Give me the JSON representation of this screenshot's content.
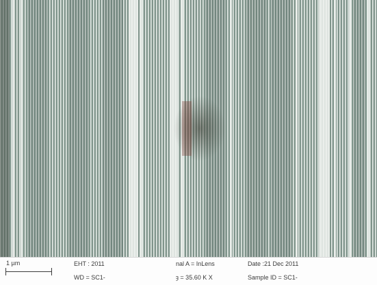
{
  "info_bar": {
    "scale_label": "1 µm",
    "eht": "EHT : 2011",
    "wd": "WD = SC1-",
    "signal": "nal A = InLens",
    "mag": "ȝ =  35.60 K X",
    "date": "Date :21 Dec 2011",
    "sample": "Sample ID = SC1-"
  },
  "colors": {
    "background": "#8a9e96",
    "bright_line": "#eef2ef",
    "dark_stripe": "#54665e"
  }
}
